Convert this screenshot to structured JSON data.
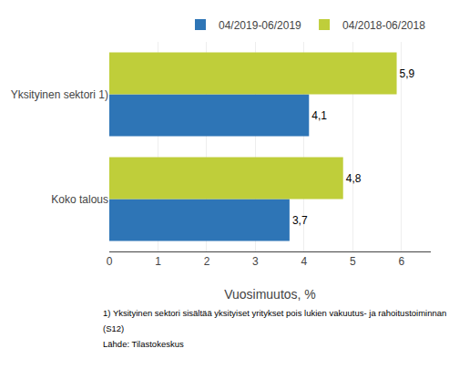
{
  "chart_data": {
    "type": "bar",
    "orientation": "horizontal",
    "categories": [
      "Koko talous",
      "Yksityinen sektori 1)"
    ],
    "series": [
      {
        "name": "04/2019-06/2019",
        "color": "#2E75B6",
        "values": [
          3.7,
          4.1
        ],
        "value_labels": [
          "3,7",
          "4,1"
        ]
      },
      {
        "name": "04/2018-06/2018",
        "color": "#BFCE3A",
        "values": [
          4.8,
          5.9
        ],
        "value_labels": [
          "4,8",
          "5,9"
        ]
      }
    ],
    "xlabel": "Vuosimuutos, %",
    "xlim": [
      0,
      6.6
    ],
    "xticks": [
      0,
      1,
      2,
      3,
      4,
      5,
      6
    ],
    "data_labels": true,
    "grid": true,
    "legend": "upper right",
    "annotations": [
      "1) Yksityinen sektori sisältää yksityiset yritykset pois lukien vakuutus- ja rahoitustoiminnan",
      "(S12)",
      "Lähde: Tilastokeskus"
    ]
  }
}
